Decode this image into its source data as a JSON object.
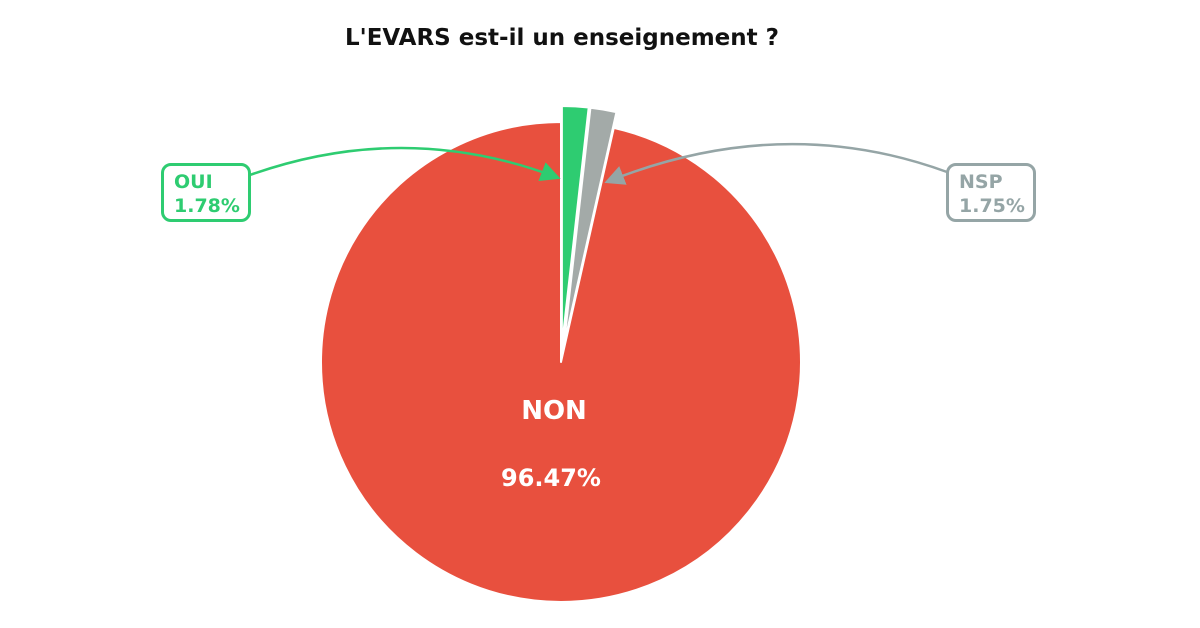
{
  "page": {
    "title": "L'EVARS est-il un enseignement ?"
  },
  "colors": {
    "background": "#ffffff",
    "title_text": "#111111",
    "oui_green": "#2ecc71",
    "non_red": "#e8503e",
    "nsp_gray_slice": "#a3aaa8",
    "nsp_gray_accent": "#95a5a6",
    "center_label_text": "#ffffff"
  },
  "chart_data": {
    "type": "pie",
    "title": "L'EVARS est-il un enseignement ?",
    "categories": [
      "OUI",
      "NSP",
      "NON"
    ],
    "values": [
      1.78,
      1.75,
      96.47
    ],
    "unit": "%",
    "start_angle": 90,
    "direction": "clockwise",
    "legend_position": "none",
    "slices": [
      {
        "label": "OUI",
        "value": 1.78,
        "display_value": "1.78%",
        "color": "#2ecc71",
        "exploded": true,
        "callout_side": "left"
      },
      {
        "label": "NSP",
        "value": 1.75,
        "display_value": "1.75%",
        "color": "#a3aaa8",
        "exploded": true,
        "callout_side": "right"
      },
      {
        "label": "NON",
        "value": 96.47,
        "display_value": "96.47%",
        "color": "#e8503e",
        "exploded": false,
        "callout_side": "none"
      }
    ]
  },
  "callout_oui": {
    "label": "OUI",
    "value": "1.78%"
  },
  "callout_nsp": {
    "label": "NSP",
    "value": "1.75%"
  },
  "center_label": {
    "label": "NON",
    "value": "96.47%"
  }
}
